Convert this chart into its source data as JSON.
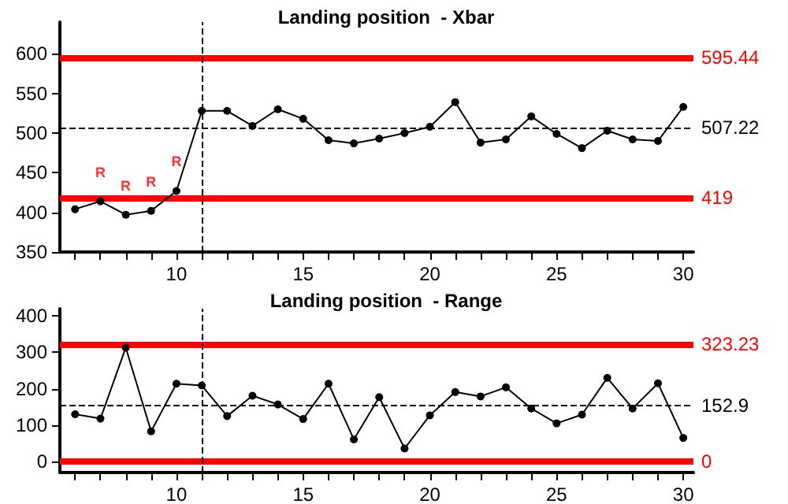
{
  "chart_data": [
    {
      "type": "line",
      "title": "Landing position  - Xbar",
      "x": [
        6,
        7,
        8,
        9,
        10,
        11,
        12,
        13,
        14,
        15,
        16,
        17,
        18,
        19,
        20,
        21,
        22,
        23,
        24,
        25,
        26,
        27,
        28,
        29,
        30
      ],
      "series": [
        {
          "color": "#000000",
          "values": [
            404,
            414,
            397,
            402,
            427,
            528,
            528,
            509,
            530,
            518,
            491,
            487,
            493,
            500,
            508,
            539,
            488,
            492,
            521,
            499,
            481,
            503,
            492,
            490,
            533
          ]
        }
      ],
      "xlim": [
        5.4,
        30.4
      ],
      "xticks": [
        {
          "value": 6,
          "label": null
        },
        {
          "value": 7,
          "label": null
        },
        {
          "value": 8,
          "label": null
        },
        {
          "value": 9,
          "label": null
        },
        10,
        {
          "value": 11,
          "label": null
        },
        {
          "value": 12,
          "label": null
        },
        {
          "value": 13,
          "label": null
        },
        {
          "value": 14,
          "label": null
        },
        15,
        {
          "value": 16,
          "label": null
        },
        {
          "value": 17,
          "label": null
        },
        {
          "value": 18,
          "label": null
        },
        {
          "value": 19,
          "label": null
        },
        20,
        {
          "value": 21,
          "label": null
        },
        {
          "value": 22,
          "label": null
        },
        {
          "value": 23,
          "label": null
        },
        {
          "value": 24,
          "label": null
        },
        25,
        {
          "value": 26,
          "label": null
        },
        {
          "value": 27,
          "label": null
        },
        {
          "value": 28,
          "label": null
        },
        {
          "value": 29,
          "label": null
        },
        30
      ],
      "ylim": [
        350,
        640
      ],
      "yticks": [
        350,
        400,
        450,
        500,
        550,
        600
      ],
      "ref_lines": [
        {
          "axis": "y",
          "value": 595.44,
          "label": "595.44",
          "color": "#ff0000"
        },
        {
          "axis": "y",
          "value": 507.22,
          "label": "507.22",
          "color": "#000000",
          "line_style": "dashed"
        },
        {
          "axis": "y",
          "value": 419,
          "label": "419",
          "color": "#ff0000"
        },
        {
          "axis": "x",
          "value": 11,
          "label": null,
          "color": "#000000",
          "line_style": "dashed"
        }
      ],
      "annotations": [
        {
          "text": "R",
          "x": 7,
          "y": 414
        },
        {
          "text": "R",
          "x": 8,
          "y": 397
        },
        {
          "text": "R",
          "x": 9,
          "y": 402
        },
        {
          "text": "R",
          "x": 10,
          "y": 427
        }
      ],
      "marker": "circle",
      "line_style": "solid",
      "grid": false
    },
    {
      "type": "line",
      "title": "Landing position  - Range",
      "x": [
        6,
        7,
        8,
        9,
        10,
        11,
        12,
        13,
        14,
        15,
        16,
        17,
        18,
        19,
        20,
        21,
        22,
        23,
        24,
        25,
        26,
        27,
        28,
        29,
        30
      ],
      "series": [
        {
          "color": "#000000",
          "values": [
            130,
            118,
            313,
            83,
            214,
            209,
            125,
            181,
            157,
            117,
            214,
            61,
            177,
            36,
            127,
            191,
            179,
            204,
            146,
            105,
            129,
            230,
            146,
            215,
            65
          ]
        }
      ],
      "xlim": [
        5.4,
        30.4
      ],
      "xticks": [
        {
          "value": 6,
          "label": null
        },
        {
          "value": 7,
          "label": null
        },
        {
          "value": 8,
          "label": null
        },
        {
          "value": 9,
          "label": null
        },
        10,
        {
          "value": 11,
          "label": null
        },
        {
          "value": 12,
          "label": null
        },
        {
          "value": 13,
          "label": null
        },
        {
          "value": 14,
          "label": null
        },
        15,
        {
          "value": 16,
          "label": null
        },
        {
          "value": 17,
          "label": null
        },
        {
          "value": 18,
          "label": null
        },
        {
          "value": 19,
          "label": null
        },
        20,
        {
          "value": 21,
          "label": null
        },
        {
          "value": 22,
          "label": null
        },
        {
          "value": 23,
          "label": null
        },
        {
          "value": 24,
          "label": null
        },
        25,
        {
          "value": 26,
          "label": null
        },
        {
          "value": 27,
          "label": null
        },
        {
          "value": 28,
          "label": null
        },
        {
          "value": 29,
          "label": null
        },
        30
      ],
      "ylim": [
        -30,
        420
      ],
      "yticks": [
        0,
        100,
        200,
        300,
        400
      ],
      "ref_lines": [
        {
          "axis": "y",
          "value": 323.23,
          "label": "323.23",
          "color": "#ff0000"
        },
        {
          "axis": "y",
          "value": 152.9,
          "label": "152.9",
          "color": "#000000",
          "line_style": "dashed"
        },
        {
          "axis": "y",
          "value": 0,
          "label": "0",
          "color": "#ff0000"
        },
        {
          "axis": "x",
          "value": 11,
          "label": null,
          "color": "#000000",
          "line_style": "dashed"
        }
      ],
      "marker": "circle",
      "line_style": "solid",
      "grid": false
    }
  ]
}
